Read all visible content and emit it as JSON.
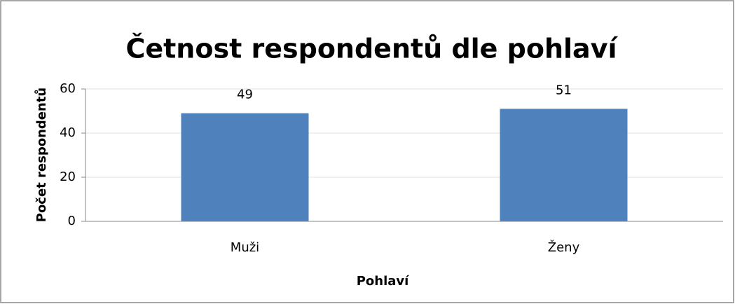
{
  "chart_data": {
    "type": "bar",
    "title": "Četnost respondentů dle pohlaví",
    "xlabel": "Pohlaví",
    "ylabel": "Počet respondentů",
    "categories": [
      "Muži",
      "Ženy"
    ],
    "values": [
      49,
      51
    ],
    "color": "#4f81bd",
    "ylim": [
      0,
      60
    ],
    "yticks": [
      0,
      20,
      40,
      60
    ],
    "grid": true
  }
}
